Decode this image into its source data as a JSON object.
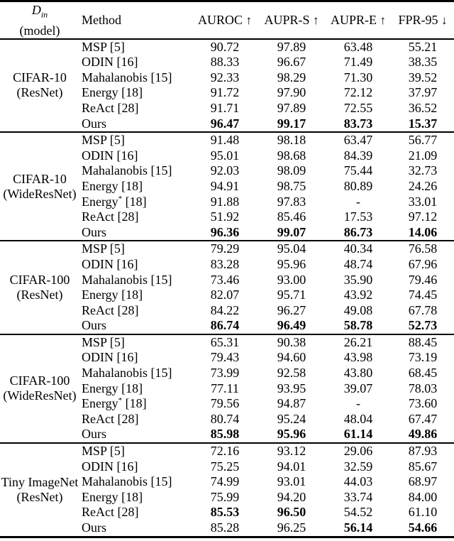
{
  "header": {
    "din": {
      "symbol": "D",
      "subscript": "in",
      "line2": "(model)"
    },
    "method": "Method",
    "metrics": [
      {
        "label": "AUROC",
        "arrow": "↑"
      },
      {
        "label": "AUPR-S",
        "arrow": "↑"
      },
      {
        "label": "AUPR-E",
        "arrow": "↑"
      },
      {
        "label": "FPR-95",
        "arrow": "↓"
      }
    ]
  },
  "groups": [
    {
      "dataset": [
        "CIFAR-10",
        "(ResNet)"
      ],
      "rows": [
        {
          "method": "MSP [5]",
          "values": [
            "90.72",
            "97.89",
            "63.48",
            "55.21"
          ],
          "bold": [
            false,
            false,
            false,
            false
          ]
        },
        {
          "method": "ODIN [16]",
          "values": [
            "88.33",
            "96.67",
            "71.49",
            "38.35"
          ],
          "bold": [
            false,
            false,
            false,
            false
          ]
        },
        {
          "method": "Mahalanobis [15]",
          "values": [
            "92.33",
            "98.29",
            "71.30",
            "39.52"
          ],
          "bold": [
            false,
            false,
            false,
            false
          ]
        },
        {
          "method": "Energy [18]",
          "values": [
            "91.72",
            "97.90",
            "72.12",
            "37.97"
          ],
          "bold": [
            false,
            false,
            false,
            false
          ]
        },
        {
          "method": "ReAct [28]",
          "values": [
            "91.71",
            "97.89",
            "72.55",
            "36.52"
          ],
          "bold": [
            false,
            false,
            false,
            false
          ]
        },
        {
          "method": "Ours",
          "values": [
            "96.47",
            "99.17",
            "83.73",
            "15.37"
          ],
          "bold": [
            true,
            true,
            true,
            true
          ]
        }
      ]
    },
    {
      "dataset": [
        "CIFAR-10",
        "(WideResNet)"
      ],
      "rows": [
        {
          "method": "MSP [5]",
          "values": [
            "91.48",
            "98.18",
            "63.47",
            "56.77"
          ],
          "bold": [
            false,
            false,
            false,
            false
          ]
        },
        {
          "method": "ODIN [16]",
          "values": [
            "95.01",
            "98.68",
            "84.39",
            "21.09"
          ],
          "bold": [
            false,
            false,
            false,
            false
          ]
        },
        {
          "method": "Mahalanobis [15]",
          "values": [
            "92.03",
            "98.09",
            "75.44",
            "32.73"
          ],
          "bold": [
            false,
            false,
            false,
            false
          ]
        },
        {
          "method": "Energy [18]",
          "values": [
            "94.91",
            "98.75",
            "80.89",
            "24.26"
          ],
          "bold": [
            false,
            false,
            false,
            false
          ]
        },
        {
          "method": "Energy* [18]",
          "values": [
            "91.88",
            "97.83",
            "-",
            "33.01"
          ],
          "bold": [
            false,
            false,
            false,
            false
          ]
        },
        {
          "method": "ReAct [28]",
          "values": [
            "51.92",
            "85.46",
            "17.53",
            "97.12"
          ],
          "bold": [
            false,
            false,
            false,
            false
          ]
        },
        {
          "method": "Ours",
          "values": [
            "96.36",
            "99.07",
            "86.73",
            "14.06"
          ],
          "bold": [
            true,
            true,
            true,
            true
          ]
        }
      ]
    },
    {
      "dataset": [
        "CIFAR-100",
        "(ResNet)"
      ],
      "rows": [
        {
          "method": "MSP [5]",
          "values": [
            "79.29",
            "95.04",
            "40.34",
            "76.58"
          ],
          "bold": [
            false,
            false,
            false,
            false
          ]
        },
        {
          "method": "ODIN [16]",
          "values": [
            "83.28",
            "95.96",
            "48.74",
            "67.96"
          ],
          "bold": [
            false,
            false,
            false,
            false
          ]
        },
        {
          "method": "Mahalanobis [15]",
          "values": [
            "73.46",
            "93.00",
            "35.90",
            "79.46"
          ],
          "bold": [
            false,
            false,
            false,
            false
          ]
        },
        {
          "method": "Energy [18]",
          "values": [
            "82.07",
            "95.71",
            "43.92",
            "74.45"
          ],
          "bold": [
            false,
            false,
            false,
            false
          ]
        },
        {
          "method": "ReAct [28]",
          "values": [
            "84.22",
            "96.27",
            "49.08",
            "67.78"
          ],
          "bold": [
            false,
            false,
            false,
            false
          ]
        },
        {
          "method": "Ours",
          "values": [
            "86.74",
            "96.49",
            "58.78",
            "52.73"
          ],
          "bold": [
            true,
            true,
            true,
            true
          ]
        }
      ]
    },
    {
      "dataset": [
        "CIFAR-100",
        "(WideResNet)"
      ],
      "rows": [
        {
          "method": "MSP [5]",
          "values": [
            "65.31",
            "90.38",
            "26.21",
            "88.45"
          ],
          "bold": [
            false,
            false,
            false,
            false
          ]
        },
        {
          "method": "ODIN [16]",
          "values": [
            "79.43",
            "94.60",
            "43.98",
            "73.19"
          ],
          "bold": [
            false,
            false,
            false,
            false
          ]
        },
        {
          "method": "Mahalanobis [15]",
          "values": [
            "73.99",
            "92.58",
            "43.80",
            "68.45"
          ],
          "bold": [
            false,
            false,
            false,
            false
          ]
        },
        {
          "method": "Energy [18]",
          "values": [
            "77.11",
            "93.95",
            "39.07",
            "78.03"
          ],
          "bold": [
            false,
            false,
            false,
            false
          ]
        },
        {
          "method": "Energy* [18]",
          "values": [
            "79.56",
            "94.87",
            "-",
            "73.60"
          ],
          "bold": [
            false,
            false,
            false,
            false
          ]
        },
        {
          "method": "ReAct [28]",
          "values": [
            "80.74",
            "95.24",
            "48.04",
            "67.47"
          ],
          "bold": [
            false,
            false,
            false,
            false
          ]
        },
        {
          "method": "Ours",
          "values": [
            "85.98",
            "95.96",
            "61.14",
            "49.86"
          ],
          "bold": [
            true,
            true,
            true,
            true
          ]
        }
      ]
    },
    {
      "dataset": [
        "Tiny ImageNet",
        "(ResNet)"
      ],
      "rows": [
        {
          "method": "MSP [5]",
          "values": [
            "72.16",
            "93.12",
            "29.06",
            "87.93"
          ],
          "bold": [
            false,
            false,
            false,
            false
          ]
        },
        {
          "method": "ODIN [16]",
          "values": [
            "75.25",
            "94.01",
            "32.59",
            "85.67"
          ],
          "bold": [
            false,
            false,
            false,
            false
          ]
        },
        {
          "method": "Mahalanobis [15]",
          "values": [
            "74.99",
            "93.01",
            "44.03",
            "68.97"
          ],
          "bold": [
            false,
            false,
            false,
            false
          ]
        },
        {
          "method": "Energy [18]",
          "values": [
            "75.99",
            "94.20",
            "33.74",
            "84.00"
          ],
          "bold": [
            false,
            false,
            false,
            false
          ]
        },
        {
          "method": "ReAct [28]",
          "values": [
            "85.53",
            "96.50",
            "54.52",
            "61.10"
          ],
          "bold": [
            true,
            true,
            false,
            false
          ]
        },
        {
          "method": "Ours",
          "values": [
            "85.28",
            "96.25",
            "56.14",
            "54.66"
          ],
          "bold": [
            false,
            false,
            true,
            true
          ]
        }
      ]
    }
  ]
}
